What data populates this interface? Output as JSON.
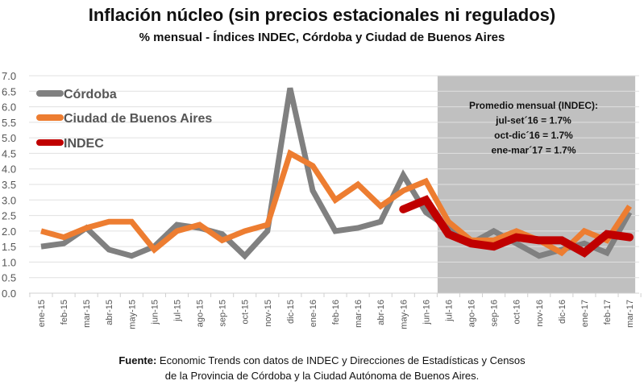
{
  "chart_data": {
    "type": "line",
    "title": "Inflación núcleo (sin precios estacionales ni regulados)",
    "subtitle": "% mensual - Índices INDEC, Córdoba y Ciudad de Buenos Aires",
    "xlabel": "",
    "ylabel": "",
    "ylim": [
      0,
      7
    ],
    "yticks": [
      "0.0",
      "0.5",
      "1.0",
      "1.5",
      "2.0",
      "2.5",
      "3.0",
      "3.5",
      "4.0",
      "4.5",
      "5.0",
      "5.5",
      "6.0",
      "6.5",
      "7.0"
    ],
    "grid": true,
    "legend_position": "top-left",
    "categories": [
      "ene-15",
      "feb-15",
      "mar-15",
      "abr-15",
      "may-15",
      "jun-15",
      "jul-15",
      "ago-15",
      "sep-15",
      "oct-15",
      "nov-15",
      "dic-15",
      "ene-16",
      "feb-16",
      "mar-16",
      "abr-16",
      "may-16",
      "jun-16",
      "jul-16",
      "ago-16",
      "sep-16",
      "oct-16",
      "nov-16",
      "dic-16",
      "ene-17",
      "feb-17",
      "mar-17"
    ],
    "series": [
      {
        "name": "Córdoba",
        "color": "#808080",
        "values": [
          1.5,
          1.6,
          2.1,
          1.4,
          1.2,
          1.5,
          2.2,
          2.1,
          1.9,
          1.2,
          2.0,
          6.6,
          3.3,
          2.0,
          2.1,
          2.3,
          3.8,
          2.6,
          2.1,
          1.6,
          2.0,
          1.6,
          1.2,
          1.4,
          1.6,
          1.3,
          2.6
        ]
      },
      {
        "name": "Ciudad de Buenos Aires",
        "color": "#ed7d31",
        "values": [
          2.0,
          1.8,
          2.1,
          2.3,
          2.3,
          1.4,
          2.0,
          2.2,
          1.7,
          2.0,
          2.2,
          4.5,
          4.1,
          3.0,
          3.5,
          2.8,
          3.3,
          3.6,
          2.3,
          1.7,
          1.7,
          2.0,
          1.7,
          1.3,
          2.0,
          1.7,
          2.8
        ]
      },
      {
        "name": "INDEC",
        "color": "#c00000",
        "values": [
          null,
          null,
          null,
          null,
          null,
          null,
          null,
          null,
          null,
          null,
          null,
          null,
          null,
          null,
          null,
          null,
          2.7,
          3.0,
          1.9,
          1.6,
          1.5,
          1.8,
          1.7,
          1.7,
          1.3,
          1.9,
          1.8
        ]
      }
    ],
    "shaded_region": {
      "from": "jul-16",
      "to": "mar-17",
      "color": "#c0c0c0"
    },
    "annotation": {
      "lines": [
        "Promedio mensual (INDEC):",
        "jul-set´16 = 1.7%",
        "oct-dic´16 = 1.7%",
        "ene-mar´17 = 1.7%"
      ]
    }
  },
  "source": {
    "label": "Fuente:",
    "line1": "Economic Trends con datos de INDEC y Direcciones de Estadísticas y Censos",
    "line2": "de la Provincia de Córdoba y la Ciudad Autónoma de Buenos Aires."
  }
}
